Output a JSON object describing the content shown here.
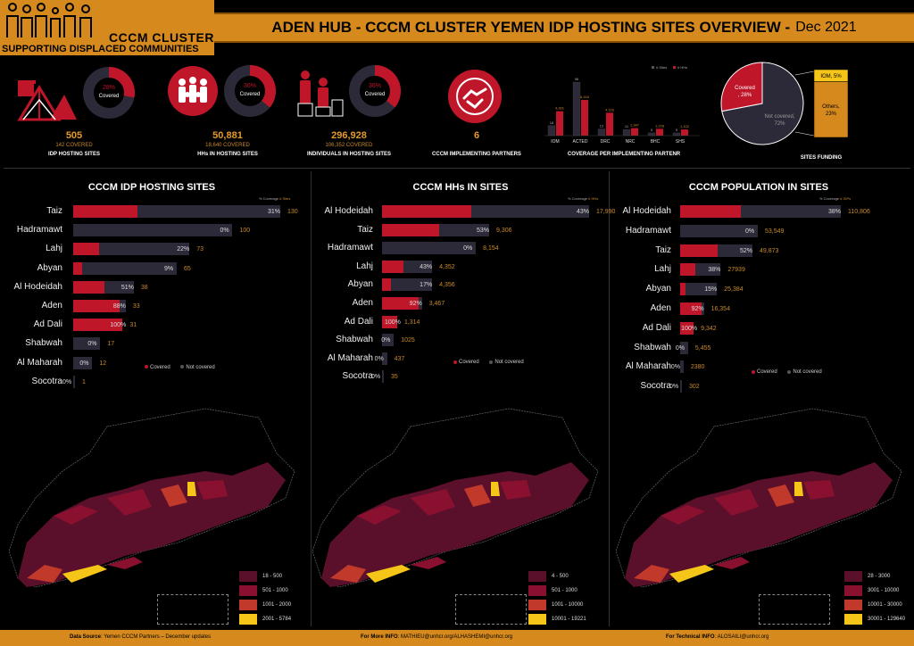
{
  "header": {
    "logo_text": "CCCM CLUSTER",
    "logo_sub": "SUPPORTING DISPLACED COMMUNITIES",
    "title": "ADEN HUB - CCCM CLUSTER YEMEN IDP HOSTING SITES OVERVIEW -",
    "date": "Dec 2021"
  },
  "kpis": [
    {
      "value": "505",
      "sub": "142 COVERED",
      "label": "IDP HOSTING SITES",
      "donut_pct": "28%",
      "donut_label": "Covered",
      "icon": "camp-icon",
      "covered_fraction": 0.28
    },
    {
      "value": "50,881",
      "sub": "18,640 COVERED",
      "label": "HHs IN HOSTING SITES",
      "donut_pct": "36%",
      "donut_label": "Covered",
      "icon": "family-icon",
      "covered_fraction": 0.36
    },
    {
      "value": "296,928",
      "sub": "106,352 COVERED",
      "label": "INDIVIDUALS IN HOSTING SITES",
      "donut_pct": "36%",
      "donut_label": "Covered",
      "icon": "individuals-icon",
      "covered_fraction": 0.36
    },
    {
      "value": "6",
      "label": "CCCM IMPLEMENTING PARTNERS",
      "icon": "handshake-icon"
    }
  ],
  "partners_chart": {
    "title": "COVERAGE PER IMPLEMENTING PARTENR",
    "legend": [
      "# Sites",
      "# HHs"
    ],
    "categories": [
      "IOM",
      "ACTED",
      "DRC",
      "NRC",
      "BHC",
      "SHS"
    ],
    "sites": [
      18,
      96,
      12,
      11,
      5,
      5
    ],
    "hhs": [
      4391,
      6416,
      4116,
      1347,
      1228,
      1102
    ],
    "site_labels": [
      "18",
      "96",
      "12",
      "11",
      "5",
      "5"
    ],
    "hh_labels": [
      "4,391",
      "6,416",
      "4,116",
      "1,347",
      "1,228",
      "1,102"
    ]
  },
  "funding": {
    "label": "SITES FUNDING",
    "slices": [
      {
        "name": "Not covered",
        "label": "Not covered,\n72%",
        "value": 72,
        "color": "#2c2a38"
      },
      {
        "name": "Covered",
        "label": "Covered\n, 28%",
        "value": 28,
        "color": "#c0162a"
      }
    ],
    "bar": [
      {
        "label": "IOM, 5%",
        "value": 5,
        "color": "#f5c518"
      },
      {
        "label": "Others,\n23%",
        "value": 23,
        "color": "#d68a1e"
      }
    ]
  },
  "panels": [
    {
      "title": "CCCM IDP HOSTING SITES",
      "coverage_legend": "% Coverage",
      "coverage_value": "# Sites",
      "rows": [
        {
          "name": "Taiz",
          "covered": 31,
          "total": 130,
          "pct": "31%",
          "count": "130"
        },
        {
          "name": "Hadramawt",
          "covered": 0,
          "total": 100,
          "pct": "0%",
          "count": "100"
        },
        {
          "name": "Lahj",
          "covered": 22,
          "total": 73,
          "pct": "22%",
          "count": "73"
        },
        {
          "name": "Abyan",
          "covered": 9,
          "total": 65,
          "pct": "9%",
          "count": "65"
        },
        {
          "name": "Al Hodeidah",
          "covered": 51,
          "total": 38,
          "pct": "51%",
          "count": "38"
        },
        {
          "name": "Aden",
          "covered": 88,
          "total": 33,
          "pct": "88%",
          "count": "33"
        },
        {
          "name": "Ad Dali",
          "covered": 100,
          "total": 31,
          "pct": "100%",
          "count": "31"
        },
        {
          "name": "Shabwah",
          "covered": 0,
          "total": 17,
          "pct": "0%",
          "count": "17"
        },
        {
          "name": "Al Maharah",
          "covered": 0,
          "total": 12,
          "pct": "0%",
          "count": "12"
        },
        {
          "name": "Socotra",
          "covered": 0,
          "total": 1,
          "pct": "0%",
          "count": "1"
        }
      ],
      "legend": [
        "Covered",
        "Not covered"
      ],
      "map_legend": [
        "18 - 500",
        "501 - 1000",
        "1001 - 2000",
        "2001 - 5784"
      ]
    },
    {
      "title": "CCCM HHs IN SITES",
      "coverage_legend": "% Coverage",
      "coverage_value": "# HHs",
      "rows": [
        {
          "name": "Al Hodeidah",
          "covered": 43,
          "total": 17990,
          "pct": "43%",
          "count": "17,990"
        },
        {
          "name": "Taiz",
          "covered": 53,
          "total": 9306,
          "pct": "53%",
          "count": "9,306"
        },
        {
          "name": "Hadramawt",
          "covered": 0,
          "total": 8154,
          "pct": "0%",
          "count": "8,154"
        },
        {
          "name": "Lahj",
          "covered": 43,
          "total": 4352,
          "pct": "43%",
          "count": "4,352"
        },
        {
          "name": "Abyan",
          "covered": 17,
          "total": 4356,
          "pct": "17%",
          "count": "4,356"
        },
        {
          "name": "Aden",
          "covered": 92,
          "total": 3467,
          "pct": "92%",
          "count": "3,467"
        },
        {
          "name": "Ad Dali",
          "covered": 100,
          "total": 1314,
          "pct": "100%",
          "count": "1,314"
        },
        {
          "name": "Shabwah",
          "covered": 0,
          "total": 1025,
          "pct": "0%",
          "count": "1025"
        },
        {
          "name": "Al Maharah",
          "covered": 0,
          "total": 437,
          "pct": "0%",
          "count": "437"
        },
        {
          "name": "Socotra",
          "covered": 0,
          "total": 35,
          "pct": "0%",
          "count": "35"
        }
      ],
      "legend": [
        "Covered",
        "Not covered"
      ],
      "map_legend": [
        "4 - 500",
        "501 - 1000",
        "1001 - 10000",
        "10001 - 19221"
      ]
    },
    {
      "title": "CCCM POPULATION IN SITES",
      "coverage_legend": "% Coverage",
      "coverage_value": "# IDPs",
      "rows": [
        {
          "name": "Al Hodeidah",
          "covered": 38,
          "total": 110806,
          "pct": "38%",
          "count": "110,806"
        },
        {
          "name": "Hadramawt",
          "covered": 0,
          "total": 53549,
          "pct": "0%",
          "count": "53,549"
        },
        {
          "name": "Taiz",
          "covered": 52,
          "total": 49873,
          "pct": "52%",
          "count": "49,873"
        },
        {
          "name": "Lahj",
          "covered": 38,
          "total": 27939,
          "pct": "38%",
          "count": "27939"
        },
        {
          "name": "Abyan",
          "covered": 15,
          "total": 25384,
          "pct": "15%",
          "count": "25,384"
        },
        {
          "name": "Aden",
          "covered": 92,
          "total": 16354,
          "pct": "92%",
          "count": "16,354"
        },
        {
          "name": "Ad Dali",
          "covered": 100,
          "total": 9342,
          "pct": "100%",
          "count": "9,342"
        },
        {
          "name": "Shabwah",
          "covered": 0,
          "total": 5455,
          "pct": "0%",
          "count": "5,455"
        },
        {
          "name": "Al Maharah",
          "covered": 0,
          "total": 2380,
          "pct": "0%",
          "count": "2380"
        },
        {
          "name": "Socotra",
          "covered": 0,
          "total": 302,
          "pct": "0%",
          "count": "302"
        }
      ],
      "legend": [
        "Covered",
        "Not covered"
      ],
      "map_legend": [
        "28 - 3000",
        "3001 - 10000",
        "10001 - 30000",
        "30001 - 129640"
      ]
    }
  ],
  "colors": {
    "accent": "#d68a1e",
    "covered": "#c0162a",
    "not_covered": "#2c2a38",
    "map_low": "#5a0f2a",
    "map_mid": "#8a1030",
    "map_high": "#c0392b",
    "map_top": "#f5c518"
  },
  "footer": {
    "source_label": "Data Source",
    "source": ": Yemen CCCM Partners – December updates",
    "more_label": "For More INFO",
    "more": ": MATHIEU@unhcr.org/ALHASHEMI@unhcr.org",
    "tech_label": "For Technical INFO",
    "tech": ": ALOSAILI@unhcr.org"
  }
}
